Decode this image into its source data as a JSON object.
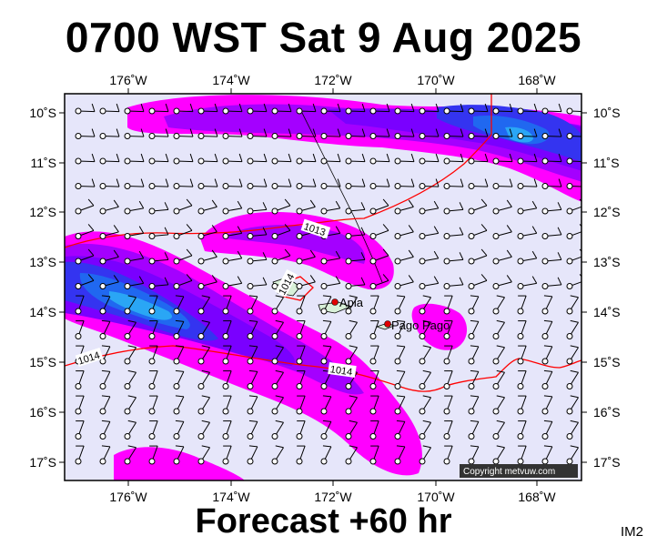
{
  "header": {
    "title": "0700 WST Sat 9 Aug 2025"
  },
  "footer": {
    "forecast": "Forecast +60 hr",
    "product": "IM2"
  },
  "axes": {
    "lon_labels": [
      "176˚W",
      "174˚W",
      "172˚W",
      "170˚W",
      "168˚W"
    ],
    "lat_labels": [
      "10˚S",
      "11˚S",
      "12˚S",
      "13˚S",
      "14˚S",
      "15˚S",
      "16˚S",
      "17˚S"
    ]
  },
  "places": [
    {
      "name": "Apia"
    },
    {
      "name": "Pago Pago"
    }
  ],
  "isobars": [
    {
      "value": "1013"
    },
    {
      "value": "1014"
    },
    {
      "value": "1014"
    },
    {
      "value": "1014"
    }
  ],
  "copyright": "Copyright metvuw.com",
  "colors": {
    "background": "#e6e6fa",
    "magenta": "#ff00ff",
    "purple": "#a400ff",
    "violet": "#7a00ff",
    "blue": "#3434f0",
    "mid_blue": "#2068f0",
    "light_blue": "#2aa6f5",
    "isobar": "#ff0000"
  }
}
